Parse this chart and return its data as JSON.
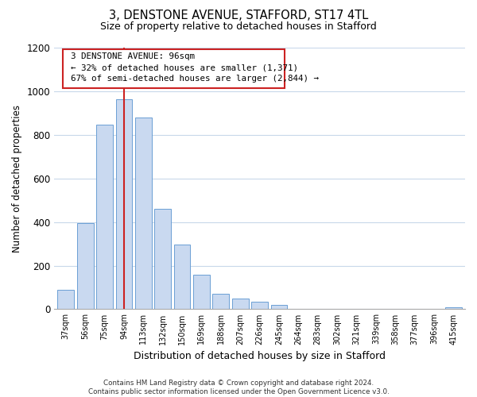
{
  "title_line1": "3, DENSTONE AVENUE, STAFFORD, ST17 4TL",
  "title_line2": "Size of property relative to detached houses in Stafford",
  "xlabel": "Distribution of detached houses by size in Stafford",
  "ylabel": "Number of detached properties",
  "bar_labels": [
    "37sqm",
    "56sqm",
    "75sqm",
    "94sqm",
    "113sqm",
    "132sqm",
    "150sqm",
    "169sqm",
    "188sqm",
    "207sqm",
    "226sqm",
    "245sqm",
    "264sqm",
    "283sqm",
    "302sqm",
    "321sqm",
    "339sqm",
    "358sqm",
    "377sqm",
    "396sqm",
    "415sqm"
  ],
  "bar_values": [
    90,
    395,
    845,
    965,
    880,
    460,
    295,
    160,
    70,
    50,
    33,
    18,
    0,
    0,
    0,
    0,
    0,
    0,
    0,
    0,
    10
  ],
  "highlight_bar_index": 3,
  "bar_color": "#c9d9f0",
  "bar_edge_color": "#6b9fd4",
  "annotation_line1": "3 DENSTONE AVENUE: 96sqm",
  "annotation_line2": "← 32% of detached houses are smaller (1,371)",
  "annotation_line3": "67% of semi-detached houses are larger (2,844) →",
  "ylim": [
    0,
    1200
  ],
  "yticks": [
    0,
    200,
    400,
    600,
    800,
    1000,
    1200
  ],
  "footer_text": "Contains HM Land Registry data © Crown copyright and database right 2024.\nContains public sector information licensed under the Open Government Licence v3.0.",
  "background_color": "#ffffff",
  "grid_color": "#c8d8ea",
  "ann_box_edge_color": "#cc2222",
  "ann_vertical_line_color": "#cc2222"
}
